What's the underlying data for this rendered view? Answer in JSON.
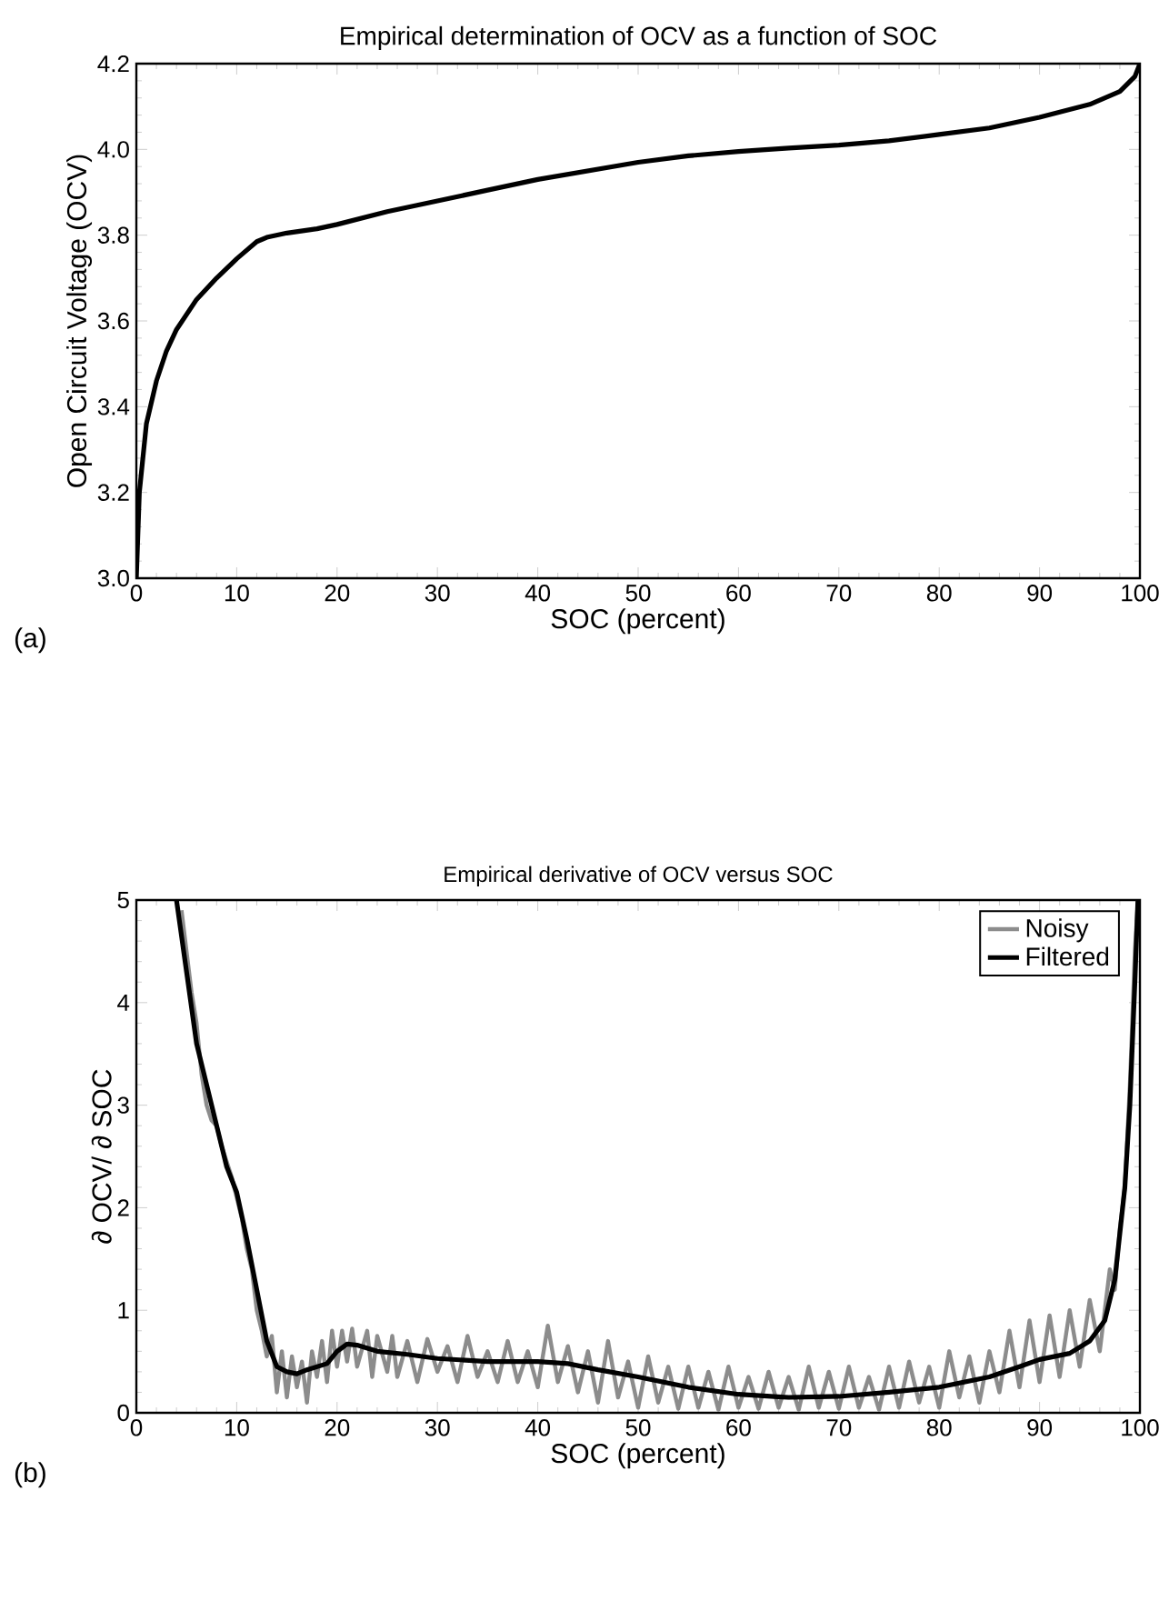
{
  "chart_data": [
    {
      "type": "line",
      "title": "Empirical determination of OCV as a function of SOC",
      "xlabel": "SOC (percent)",
      "ylabel": "Open Circuit Voltage (OCV)",
      "annotations": [
        "(a)"
      ],
      "xlim": [
        0,
        100
      ],
      "xticks": [
        0,
        10,
        20,
        30,
        40,
        50,
        60,
        70,
        80,
        90,
        100
      ],
      "ylim": [
        3.0,
        4.2
      ],
      "yticks": [
        {
          "value": 3.0,
          "label": "3.0"
        },
        {
          "value": 3.2,
          "label": "3.2"
        },
        {
          "value": 3.4,
          "label": "3.4"
        },
        {
          "value": 3.6,
          "label": "3.6"
        },
        {
          "value": 3.8,
          "label": "3.8"
        },
        {
          "value": 4.0,
          "label": "4.0"
        },
        {
          "value": 4.2,
          "label": "4.2"
        }
      ],
      "legend": false,
      "marker": "none",
      "line_style": "solid",
      "series": [
        {
          "color": "#000000",
          "x": [
            0,
            0.3,
            1,
            2,
            3,
            4,
            6,
            8,
            10,
            12,
            13,
            15,
            18,
            20,
            25,
            30,
            35,
            40,
            45,
            50,
            55,
            60,
            65,
            70,
            75,
            80,
            85,
            90,
            95,
            98,
            99.5,
            100
          ],
          "values": [
            3.0,
            3.2,
            3.36,
            3.46,
            3.53,
            3.58,
            3.65,
            3.7,
            3.745,
            3.785,
            3.795,
            3.805,
            3.815,
            3.825,
            3.855,
            3.88,
            3.905,
            3.93,
            3.95,
            3.97,
            3.985,
            3.995,
            4.003,
            4.01,
            4.02,
            4.035,
            4.05,
            4.075,
            4.105,
            4.135,
            4.17,
            4.2
          ]
        }
      ]
    },
    {
      "type": "line",
      "title": "Empirical derivative of OCV versus SOC",
      "xlabel": "SOC (percent)",
      "ylabel": "∂ OCV/ ∂ SOC",
      "annotations": [
        "(b)"
      ],
      "xlim": [
        0,
        100
      ],
      "xticks": [
        0,
        10,
        20,
        30,
        40,
        50,
        60,
        70,
        80,
        90,
        100
      ],
      "ylim": [
        0,
        5
      ],
      "yticks": [
        0,
        1,
        2,
        3,
        4,
        5
      ],
      "legend": "top right",
      "marker": "none",
      "line_style": "solid",
      "series": [
        {
          "name": "Noisy",
          "color": "#8c8c8c",
          "x": [
            4.5,
            5,
            5.5,
            6,
            6.5,
            7,
            7.5,
            8,
            8.5,
            9,
            9.5,
            10,
            10.5,
            11,
            11.5,
            12,
            12.5,
            13,
            13.5,
            14,
            14.5,
            15,
            15.5,
            16,
            16.5,
            17,
            17.5,
            18,
            18.5,
            19,
            19.5,
            20,
            20.5,
            21,
            21.5,
            22,
            23,
            23.5,
            24,
            25,
            25.5,
            26,
            27,
            28,
            29,
            30,
            31,
            32,
            33,
            34,
            35,
            36,
            37,
            38,
            39,
            40,
            41,
            42,
            43,
            44,
            45,
            46,
            47,
            48,
            49,
            50,
            51,
            52,
            53,
            54,
            55,
            56,
            57,
            58,
            59,
            60,
            61,
            62,
            63,
            64,
            65,
            66,
            67,
            68,
            69,
            70,
            71,
            72,
            73,
            74,
            75,
            76,
            77,
            78,
            79,
            80,
            81,
            82,
            83,
            84,
            85,
            86,
            87,
            88,
            89,
            90,
            91,
            92,
            93,
            94,
            95,
            96,
            97,
            97.5,
            98,
            98.5,
            99,
            99.5,
            99.8
          ],
          "values": [
            4.9,
            4.5,
            4.1,
            3.8,
            3.3,
            3.0,
            2.85,
            2.8,
            2.6,
            2.45,
            2.3,
            2.1,
            1.9,
            1.6,
            1.4,
            1.0,
            0.8,
            0.55,
            0.75,
            0.2,
            0.6,
            0.15,
            0.55,
            0.25,
            0.5,
            0.1,
            0.6,
            0.35,
            0.7,
            0.3,
            0.8,
            0.45,
            0.8,
            0.5,
            0.82,
            0.45,
            0.8,
            0.35,
            0.75,
            0.4,
            0.75,
            0.35,
            0.7,
            0.3,
            0.72,
            0.4,
            0.65,
            0.3,
            0.75,
            0.35,
            0.6,
            0.3,
            0.7,
            0.3,
            0.6,
            0.25,
            0.85,
            0.3,
            0.65,
            0.2,
            0.6,
            0.1,
            0.7,
            0.15,
            0.5,
            0.05,
            0.55,
            0.1,
            0.45,
            0.04,
            0.45,
            0.05,
            0.4,
            0.03,
            0.45,
            0.05,
            0.35,
            0.04,
            0.4,
            0.05,
            0.35,
            0.03,
            0.45,
            0.05,
            0.4,
            0.04,
            0.45,
            0.05,
            0.35,
            0.03,
            0.45,
            0.05,
            0.5,
            0.1,
            0.45,
            0.05,
            0.6,
            0.15,
            0.55,
            0.1,
            0.6,
            0.2,
            0.8,
            0.25,
            0.9,
            0.3,
            0.95,
            0.35,
            1.0,
            0.45,
            1.1,
            0.6,
            1.4,
            1.2,
            1.8,
            2.2,
            3.2,
            4.5,
            5.0
          ]
        },
        {
          "name": "Filtered",
          "color": "#000000",
          "x": [
            4,
            5,
            6,
            7,
            8,
            9,
            10,
            11,
            12,
            13,
            14,
            15,
            16,
            17,
            19,
            20,
            21,
            22,
            24,
            27,
            30,
            35,
            40,
            43,
            46,
            50,
            55,
            60,
            65,
            70,
            75,
            80,
            85,
            88,
            90,
            93,
            95,
            96.5,
            97.5,
            98.5,
            99,
            99.5,
            99.8
          ],
          "values": [
            5,
            4.3,
            3.6,
            3.2,
            2.8,
            2.4,
            2.15,
            1.7,
            1.2,
            0.7,
            0.45,
            0.4,
            0.38,
            0.42,
            0.48,
            0.6,
            0.67,
            0.66,
            0.6,
            0.57,
            0.53,
            0.5,
            0.5,
            0.48,
            0.42,
            0.35,
            0.25,
            0.18,
            0.15,
            0.16,
            0.2,
            0.25,
            0.35,
            0.45,
            0.52,
            0.58,
            0.7,
            0.9,
            1.3,
            2.2,
            3.0,
            4.2,
            5.0
          ]
        }
      ]
    }
  ]
}
